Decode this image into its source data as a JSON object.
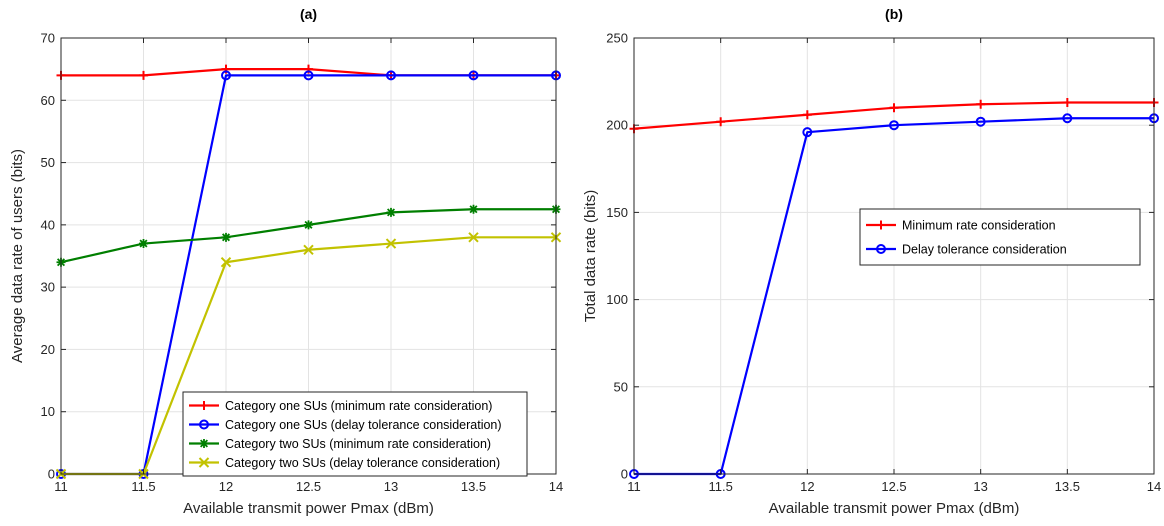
{
  "colors": {
    "red": "#ff0000",
    "blue": "#0000ff",
    "green": "#007f00",
    "yellow": "#c2c200"
  },
  "chart_data": [
    {
      "panel": "a",
      "type": "line",
      "title": "(a)",
      "xlabel": "Available transmit power Pmax (dBm)",
      "ylabel": "Average data rate of users (bits)",
      "xlim": [
        11,
        14
      ],
      "ylim": [
        0,
        70
      ],
      "xticks": [
        11,
        11.5,
        12,
        12.5,
        13,
        13.5,
        14
      ],
      "yticks": [
        0,
        10,
        20,
        30,
        40,
        50,
        60,
        70
      ],
      "grid": true,
      "legend_position": "bottom-right",
      "x": [
        11,
        11.5,
        12,
        12.5,
        13,
        13.5,
        14
      ],
      "series": [
        {
          "name": "Category one SUs (minimum rate consideration)",
          "color": "#ff0000",
          "marker": "plus",
          "values": [
            64,
            64,
            65,
            65,
            64,
            64,
            64
          ]
        },
        {
          "name": "Category one SUs (delay tolerance consideration)",
          "color": "#0000ff",
          "marker": "circle",
          "values": [
            0,
            0,
            64,
            64,
            64,
            64,
            64
          ]
        },
        {
          "name": "Category two SUs (minimum rate consideration)",
          "color": "#007f00",
          "marker": "asterisk",
          "values": [
            34,
            37,
            38,
            40,
            42,
            42.5,
            42.5
          ]
        },
        {
          "name": "Category two SUs (delay tolerance consideration)",
          "color": "#c2c200",
          "marker": "cross",
          "values": [
            0,
            0,
            34,
            36,
            37,
            38,
            38
          ]
        }
      ]
    },
    {
      "panel": "b",
      "type": "line",
      "title": "(b)",
      "xlabel": "Available transmit power Pmax (dBm)",
      "ylabel": "Total data rate (bits)",
      "xlim": [
        11,
        14
      ],
      "ylim": [
        0,
        250
      ],
      "xticks": [
        11,
        11.5,
        12,
        12.5,
        13,
        13.5,
        14
      ],
      "yticks": [
        0,
        50,
        100,
        150,
        200,
        250
      ],
      "grid": true,
      "legend_position": "center-right",
      "x": [
        11,
        11.5,
        12,
        12.5,
        13,
        13.5,
        14
      ],
      "series": [
        {
          "name": "Minimum rate consideration",
          "color": "#ff0000",
          "marker": "plus",
          "values": [
            198,
            202,
            206,
            210,
            212,
            213,
            213
          ]
        },
        {
          "name": "Delay tolerance consideration",
          "color": "#0000ff",
          "marker": "circle",
          "values": [
            0,
            0,
            196,
            200,
            202,
            204,
            204
          ]
        }
      ]
    }
  ]
}
